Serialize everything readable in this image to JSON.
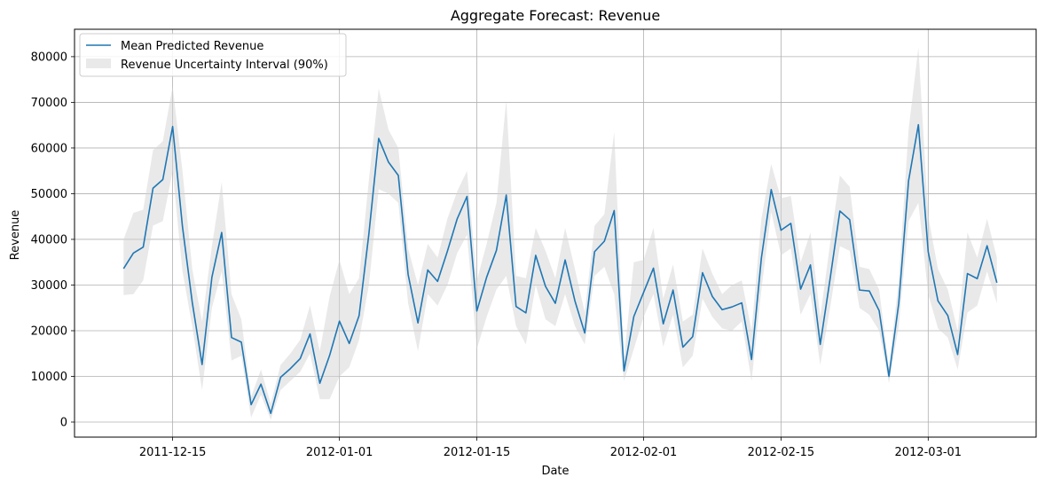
{
  "chart_data": {
    "type": "line",
    "title": "Aggregate Forecast: Revenue",
    "xlabel": "Date",
    "ylabel": "Revenue",
    "x_start": "2011-12-10",
    "x_tick_labels": [
      "2011-12-15",
      "2012-01-01",
      "2012-01-15",
      "2012-02-01",
      "2012-02-15",
      "2012-03-01"
    ],
    "y_tick_labels": [
      "0",
      "10000",
      "20000",
      "30000",
      "40000",
      "50000",
      "60000",
      "70000",
      "80000"
    ],
    "xlim": [
      "2011-12-05",
      "2012-03-12"
    ],
    "ylim": [
      -3300,
      86000
    ],
    "grid": true,
    "legend_position": "top-left",
    "series": [
      {
        "name": "Mean Predicted Revenue",
        "color": "#1f77b4",
        "values": [
          33600,
          37000,
          38300,
          51200,
          53100,
          64700,
          42800,
          26200,
          12600,
          31700,
          41500,
          18500,
          17500,
          3800,
          8300,
          1900,
          9800,
          11700,
          13900,
          19300,
          8500,
          14600,
          22100,
          17200,
          23300,
          41200,
          62100,
          56900,
          54000,
          32300,
          21700,
          33300,
          30800,
          37400,
          44500,
          49400,
          24300,
          31700,
          37600,
          49700,
          25300,
          23900,
          36500,
          29700,
          26000,
          35500,
          26500,
          19500,
          37300,
          39600,
          46300,
          11200,
          23100,
          28400,
          33700,
          21500,
          28900,
          16400,
          18700,
          32700,
          27500,
          24600,
          25200,
          26100,
          13700,
          35900,
          50900,
          42000,
          43500,
          29100,
          34400,
          17000,
          31300,
          46200,
          44300,
          28900,
          28700,
          24400,
          10000,
          26000,
          52800,
          65100,
          37300,
          26500,
          23300,
          14800,
          32500,
          31400,
          38600,
          30500
        ]
      },
      {
        "name": "Revenue Uncertainty Interval (90%)",
        "color": "#d3d3d3",
        "lower": [
          27800,
          28000,
          31000,
          43000,
          44000,
          55000,
          33000,
          21000,
          7000,
          25000,
          33000,
          13500,
          14500,
          1000,
          6000,
          500,
          7000,
          9000,
          11000,
          15000,
          5000,
          5000,
          10000,
          12000,
          18000,
          30000,
          51000,
          50000,
          48000,
          26000,
          15500,
          28000,
          25500,
          30000,
          37000,
          41000,
          16000,
          23000,
          29000,
          32000,
          21000,
          17000,
          30000,
          22500,
          21000,
          28000,
          21000,
          17000,
          32000,
          34000,
          28000,
          9000,
          16000,
          23000,
          28000,
          16500,
          23500,
          12000,
          14500,
          27000,
          23000,
          20500,
          20000,
          22000,
          9000,
          29000,
          46000,
          36500,
          38000,
          23500,
          28000,
          12500,
          25000,
          38500,
          37500,
          25000,
          23500,
          20000,
          8500,
          21000,
          44000,
          48000,
          28000,
          20500,
          18500,
          11500,
          24000,
          25500,
          33000,
          26000
        ],
        "upper": [
          40000,
          45800,
          46500,
          59500,
          61500,
          73500,
          55000,
          33500,
          22000,
          38500,
          52500,
          28000,
          22500,
          5500,
          11500,
          4000,
          12500,
          15000,
          18000,
          25500,
          15500,
          27500,
          35500,
          28000,
          31500,
          53000,
          73000,
          64000,
          60000,
          38000,
          30000,
          39000,
          36000,
          44500,
          50500,
          55000,
          31000,
          39000,
          48000,
          70500,
          32000,
          31500,
          42500,
          37500,
          31500,
          42500,
          33500,
          24000,
          43000,
          45500,
          63500,
          14000,
          35000,
          35500,
          42500,
          27000,
          34500,
          22000,
          23500,
          38000,
          32500,
          28000,
          30000,
          31000,
          20000,
          44500,
          56500,
          49000,
          49500,
          35000,
          41500,
          23000,
          39000,
          54000,
          51500,
          34000,
          33500,
          29000,
          12000,
          31000,
          64000,
          82000,
          45000,
          33500,
          29000,
          20000,
          41500,
          36000,
          44500,
          36000
        ]
      }
    ]
  }
}
